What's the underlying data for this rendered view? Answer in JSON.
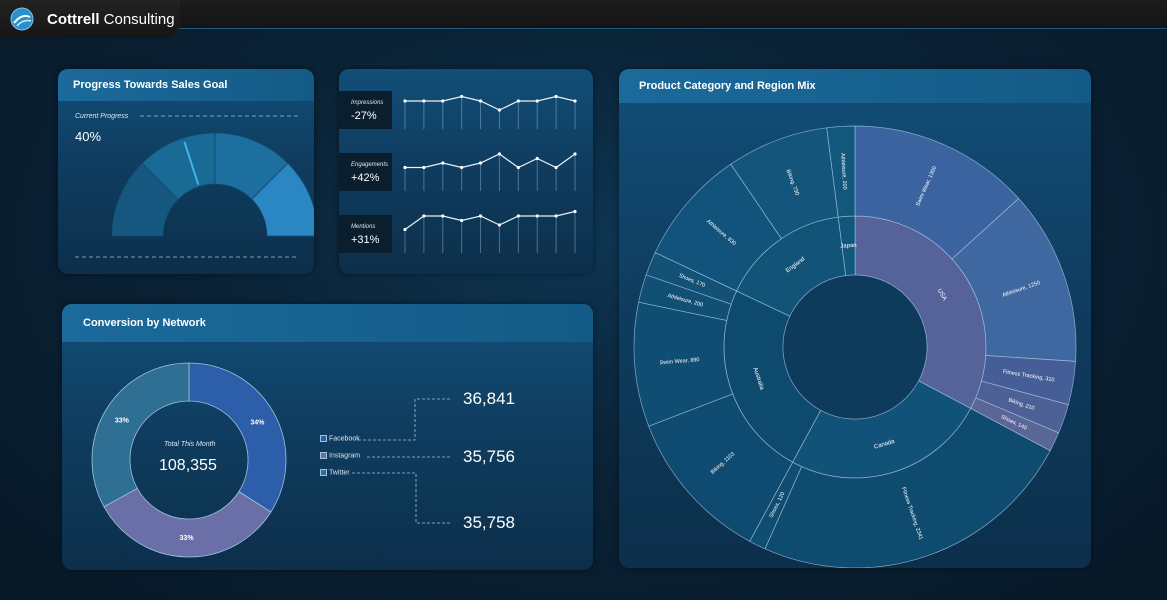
{
  "app": {
    "brand_bold": "Cottrell",
    "brand_rest": " Consulting"
  },
  "colors": {
    "accent": "#1b6a9b",
    "purple": "#6a6fa8",
    "blue": "#2c5ea9"
  },
  "sales_goal": {
    "title": "Progress Towards Sales Goal",
    "label": "Current Progress",
    "value_text": "40%",
    "progress": 0.4
  },
  "social": {
    "metrics": [
      {
        "label": "Impressions",
        "value": "-27%",
        "spark": [
          4,
          4,
          4,
          5,
          4,
          2,
          4,
          4,
          5,
          4
        ]
      },
      {
        "label": "Engagements",
        "value": "+42%",
        "spark": [
          3,
          3,
          4,
          3,
          4,
          6,
          3,
          5,
          3,
          6
        ]
      },
      {
        "label": "Mentions",
        "value": "+31%",
        "spark": [
          3,
          6,
          6,
          5,
          6,
          4,
          6,
          6,
          6,
          7
        ]
      }
    ]
  },
  "conversion": {
    "title": "Conversion by Network",
    "center_label": "Total This Month",
    "center_value": "108,355",
    "legend": [
      {
        "name": "Facebook",
        "value": "36,841",
        "color": "#2c5ea9"
      },
      {
        "name": "Instagram",
        "value": "35,756",
        "color": "#6a6fa8"
      },
      {
        "name": "Twitter",
        "value": "35,758",
        "color": "#2f6f93"
      }
    ],
    "slices": [
      {
        "label": "34%",
        "value": 34,
        "color": "#2c5ea9"
      },
      {
        "label": "33%",
        "value": 33,
        "color": "#6a6fa8"
      },
      {
        "label": "33%",
        "value": 33,
        "color": "#2f6f93"
      }
    ]
  },
  "mix": {
    "title": "Product Category and Region Mix",
    "regions": [
      {
        "name": "USA",
        "color": "#56639b",
        "children": [
          {
            "name": "Swim Wear, 1300",
            "value": 1300,
            "color": "#3b639f"
          },
          {
            "name": "Athleisure, 1250",
            "value": 1250,
            "color": "#3f67a0"
          },
          {
            "name": "Fitness Tracking, 310",
            "value": 310,
            "color": "#455e97"
          },
          {
            "name": "Biking, 210",
            "value": 210,
            "color": "#4e6196"
          },
          {
            "name": "Shoes, 140",
            "value": 140,
            "color": "#5a6697"
          }
        ]
      },
      {
        "name": "Canada",
        "color": "#115378",
        "children": [
          {
            "name": "Fitness Tracking, 2341",
            "value": 2341,
            "color": "#0f4a6f"
          },
          {
            "name": "Shoes, 120",
            "value": 120,
            "color": "#104d72"
          }
        ]
      },
      {
        "name": "Australia",
        "color": "#0e4a6e",
        "children": [
          {
            "name": "Biking, 1103",
            "value": 1103,
            "color": "#0f4b70"
          },
          {
            "name": "Swim Wear, 890",
            "value": 890,
            "color": "#104d72"
          },
          {
            "name": "Athleisure, 200",
            "value": 200,
            "color": "#124f75"
          },
          {
            "name": "Shoes, 170",
            "value": 170,
            "color": "#135177"
          }
        ]
      },
      {
        "name": "England",
        "color": "#115478",
        "children": [
          {
            "name": "Athleisure, 830",
            "value": 830,
            "color": "#11537a"
          },
          {
            "name": "Biking, 730",
            "value": 730,
            "color": "#13557b"
          }
        ]
      },
      {
        "name": "Japan",
        "color": "#11567b",
        "children": [
          {
            "name": "Athleisure, 200",
            "value": 200,
            "color": "#12587d"
          }
        ]
      }
    ]
  }
}
